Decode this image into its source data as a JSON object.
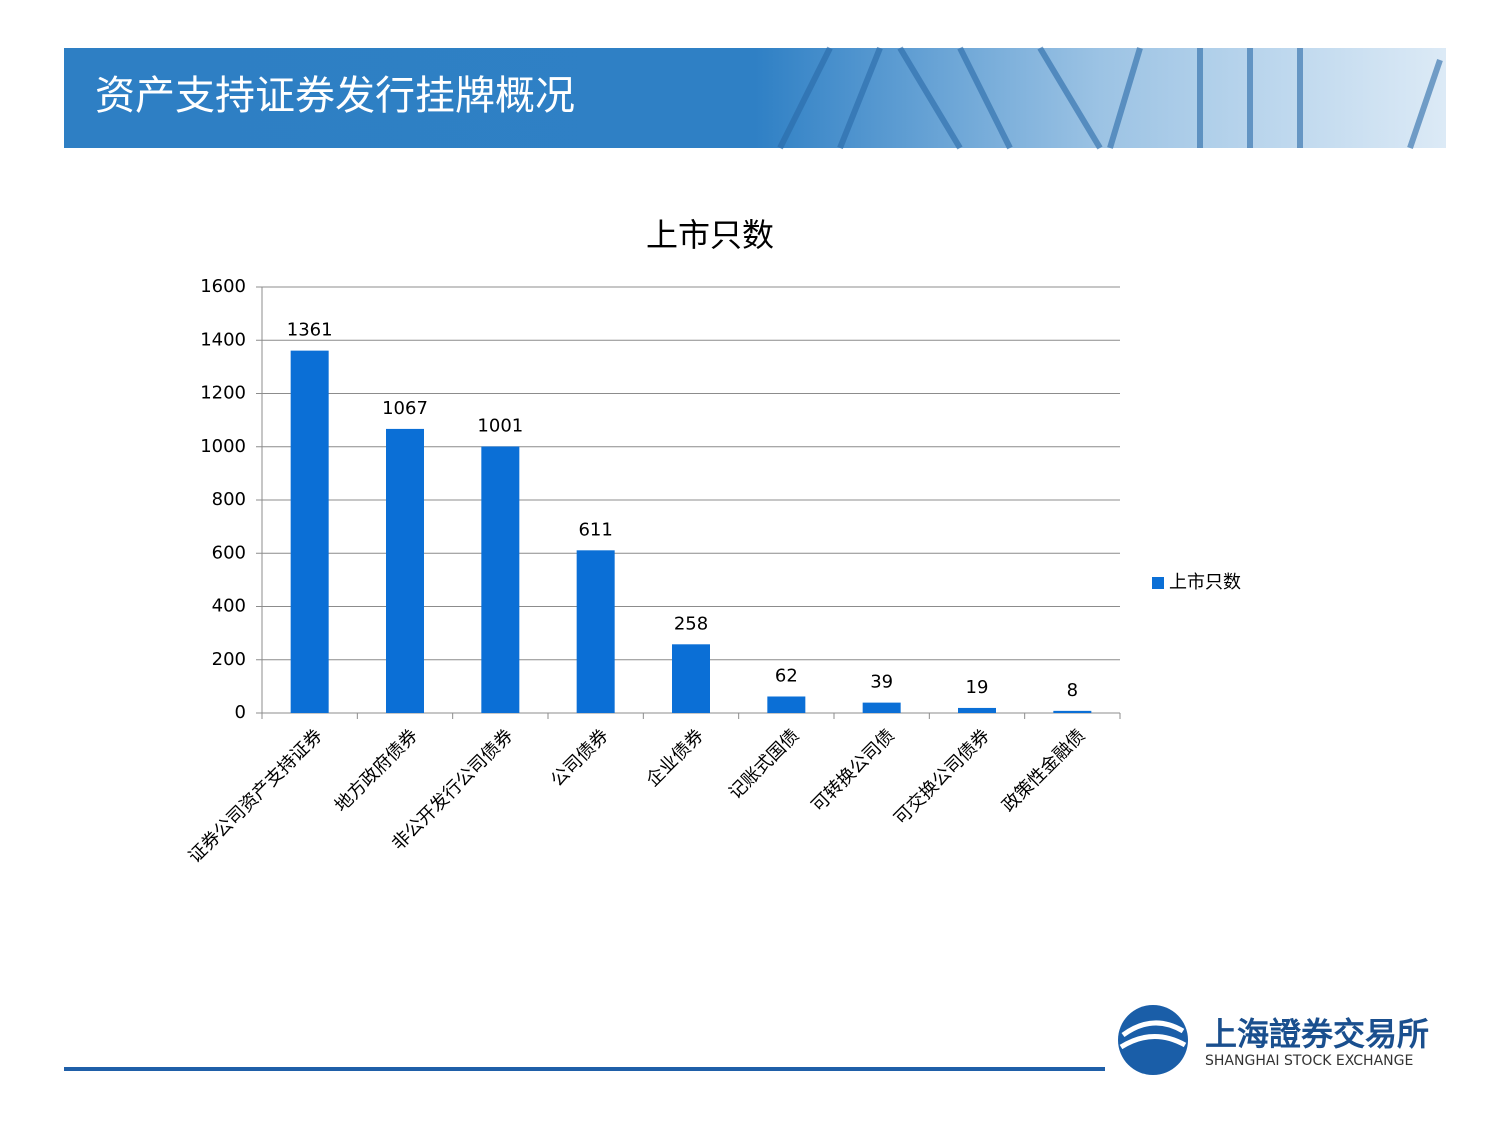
{
  "header": {
    "title": "资产支持证券发行挂牌概况"
  },
  "chart_data": {
    "type": "bar",
    "title": "上市只数",
    "categories": [
      "证券公司资产支持证券",
      "地方政府债券",
      "非公开发行公司债券",
      "公司债券",
      "企业债券",
      "记账式国债",
      "可转换公司债",
      "可交换公司债券",
      "政策性金融债"
    ],
    "series": [
      {
        "name": "上市只数",
        "color": "#0b6fd6",
        "values": [
          1361,
          1067,
          1001,
          611,
          258,
          62,
          39,
          19,
          8
        ]
      }
    ],
    "ylim": [
      0,
      1600
    ],
    "yticks": [
      0,
      200,
      400,
      600,
      800,
      1000,
      1200,
      1400,
      1600
    ],
    "grid": true,
    "legend": "right"
  },
  "footer": {
    "logo_cn": "上海證券交易所",
    "logo_en": "SHANGHAI STOCK EXCHANGE"
  }
}
